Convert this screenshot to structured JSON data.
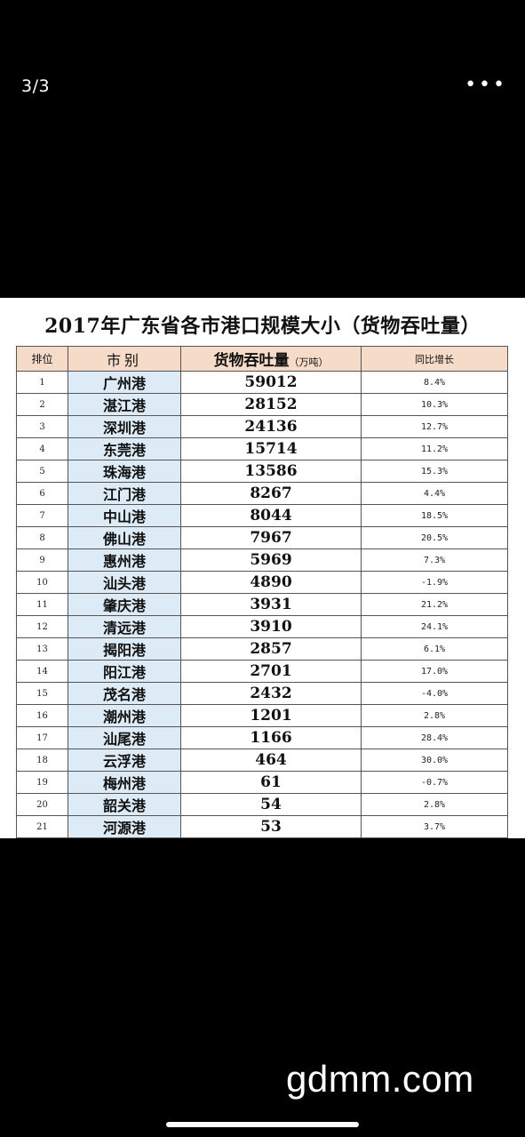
{
  "viewer": {
    "counter": "3/3",
    "more_label": "•••"
  },
  "table": {
    "title": "2017年广东省各市港口规模大小（货物吞吐量）",
    "headers": {
      "rank": "排位",
      "city": "市别",
      "volume": "货物吞吐量",
      "volume_unit": "（万吨）",
      "growth": "同比增长"
    },
    "rows": [
      {
        "rank": "1",
        "city": "广州港",
        "volume": "59012",
        "growth": "8.4%"
      },
      {
        "rank": "2",
        "city": "湛江港",
        "volume": "28152",
        "growth": "10.3%"
      },
      {
        "rank": "3",
        "city": "深圳港",
        "volume": "24136",
        "growth": "12.7%"
      },
      {
        "rank": "4",
        "city": "东莞港",
        "volume": "15714",
        "growth": "11.2%"
      },
      {
        "rank": "5",
        "city": "珠海港",
        "volume": "13586",
        "growth": "15.3%"
      },
      {
        "rank": "6",
        "city": "江门港",
        "volume": "8267",
        "growth": "4.4%"
      },
      {
        "rank": "7",
        "city": "中山港",
        "volume": "8044",
        "growth": "18.5%"
      },
      {
        "rank": "8",
        "city": "佛山港",
        "volume": "7967",
        "growth": "20.5%"
      },
      {
        "rank": "9",
        "city": "惠州港",
        "volume": "5969",
        "growth": "7.3%"
      },
      {
        "rank": "10",
        "city": "汕头港",
        "volume": "4890",
        "growth": "-1.9%"
      },
      {
        "rank": "11",
        "city": "肇庆港",
        "volume": "3931",
        "growth": "21.2%"
      },
      {
        "rank": "12",
        "city": "清远港",
        "volume": "3910",
        "growth": "24.1%"
      },
      {
        "rank": "13",
        "city": "揭阳港",
        "volume": "2857",
        "growth": "6.1%"
      },
      {
        "rank": "14",
        "city": "阳江港",
        "volume": "2701",
        "growth": "17.0%"
      },
      {
        "rank": "15",
        "city": "茂名港",
        "volume": "2432",
        "growth": "-4.0%"
      },
      {
        "rank": "16",
        "city": "潮州港",
        "volume": "1201",
        "growth": "2.8%"
      },
      {
        "rank": "17",
        "city": "汕尾港",
        "volume": "1166",
        "growth": "28.4%"
      },
      {
        "rank": "18",
        "city": "云浮港",
        "volume": "464",
        "growth": "30.0%"
      },
      {
        "rank": "19",
        "city": "梅州港",
        "volume": "61",
        "growth": "-0.7%"
      },
      {
        "rank": "20",
        "city": "韶关港",
        "volume": "54",
        "growth": "2.8%"
      },
      {
        "rank": "21",
        "city": "河源港",
        "volume": "53",
        "growth": "3.7%"
      }
    ]
  },
  "watermark": "gdmm.com"
}
